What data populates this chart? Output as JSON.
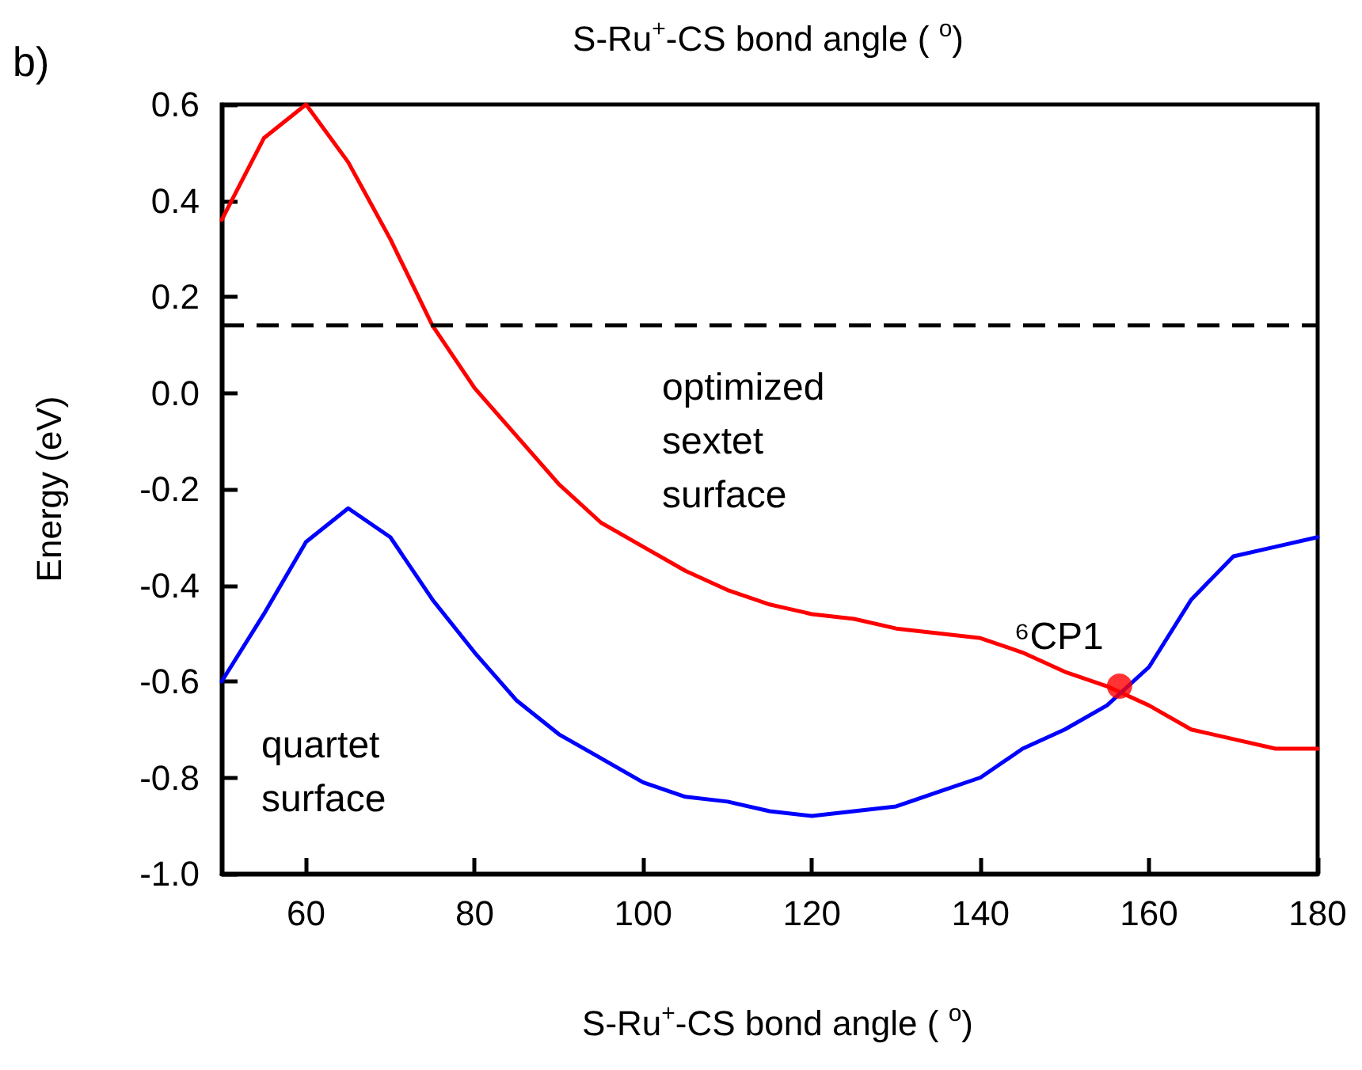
{
  "chart_data": {
    "type": "line",
    "title": "S-Ru$^{+}$-CS bond angle ( $^{o}$)",
    "xlabel": "S-Ru$^{+}$-CS bond angle ( $^{o}$)",
    "ylabel": "Energy (eV)",
    "xlim": [
      50,
      180
    ],
    "xticks": [
      60,
      80,
      100,
      120,
      140,
      160,
      180
    ],
    "ylim": [
      -1.0,
      0.6
    ],
    "yticks": [
      {
        "value": -1,
        "label": "-1.0"
      },
      -0.8,
      -0.6,
      -0.4,
      -0.2,
      {
        "value": 0,
        "label": "0.0"
      },
      0.2,
      0.4,
      0.6
    ],
    "grid": false,
    "marker": "none",
    "line_style": "solid",
    "series": [
      {
        "color": "#ff0000",
        "x": [
          50,
          55,
          60,
          65,
          70,
          75,
          80,
          85,
          90,
          95,
          100,
          105,
          110,
          115,
          120,
          125,
          130,
          135,
          140,
          145,
          150,
          155,
          160,
          165,
          170,
          175,
          180
        ],
        "values": [
          0.36,
          0.53,
          0.6,
          0.48,
          0.32,
          0.14,
          0.01,
          -0.09,
          -0.19,
          -0.27,
          -0.32,
          -0.37,
          -0.41,
          -0.44,
          -0.46,
          -0.47,
          -0.49,
          -0.5,
          -0.51,
          -0.54,
          -0.58,
          -0.61,
          -0.65,
          -0.7,
          -0.72,
          -0.74,
          -0.74
        ]
      },
      {
        "color": "#0000ff",
        "x": [
          50,
          55,
          60,
          65,
          70,
          75,
          80,
          85,
          90,
          95,
          100,
          105,
          110,
          115,
          120,
          125,
          130,
          135,
          140,
          145,
          150,
          155,
          160,
          165,
          170,
          175,
          180
        ],
        "values": [
          -0.6,
          -0.46,
          -0.31,
          -0.24,
          -0.3,
          -0.43,
          -0.54,
          -0.64,
          -0.71,
          -0.76,
          -0.81,
          -0.84,
          -0.85,
          -0.87,
          -0.88,
          -0.87,
          -0.86,
          -0.83,
          -0.8,
          -0.74,
          -0.7,
          -0.65,
          -0.57,
          -0.43,
          -0.34,
          -0.32,
          -0.3
        ]
      },
      {
        "type": "scatter",
        "marker": "circle",
        "color": "#ff0000",
        "x": [
          156.5
        ],
        "values": [
          -0.61
        ]
      }
    ],
    "ref_lines": [
      {
        "axis": "y",
        "value": 0.14,
        "color": "#000000",
        "line_style": "dashed"
      }
    ],
    "annotations": [
      "b)",
      "optimized\nsextet\nsurface",
      "quartet\nsurface",
      {
        "text": "⁶CP1",
        "x": 156.5,
        "y": -0.61
      }
    ]
  }
}
